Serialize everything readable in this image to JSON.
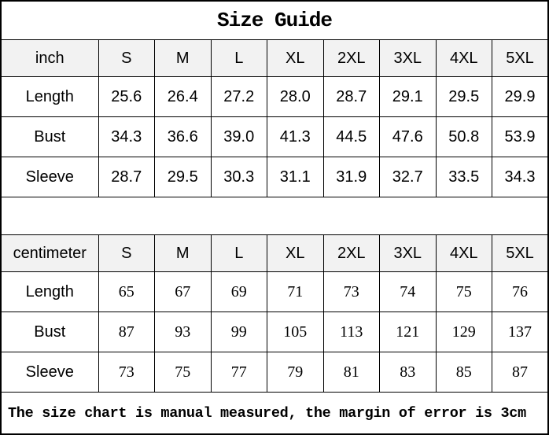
{
  "title": "Size Guide",
  "footer_note": "The size chart is manual measured, the margin of error is 3cm",
  "colors": {
    "header_bg": "#f2f2f2",
    "border": "#000000",
    "text": "#000000",
    "background": "#ffffff"
  },
  "inch_table": {
    "unit_label": "inch",
    "sizes": [
      "S",
      "M",
      "L",
      "XL",
      "2XL",
      "3XL",
      "4XL",
      "5XL"
    ],
    "rows": [
      {
        "label": "Length",
        "values": [
          "25.6",
          "26.4",
          "27.2",
          "28.0",
          "28.7",
          "29.1",
          "29.5",
          "29.9"
        ]
      },
      {
        "label": "Bust",
        "values": [
          "34.3",
          "36.6",
          "39.0",
          "41.3",
          "44.5",
          "47.6",
          "50.8",
          "53.9"
        ]
      },
      {
        "label": "Sleeve",
        "values": [
          "28.7",
          "29.5",
          "30.3",
          "31.1",
          "31.9",
          "32.7",
          "33.5",
          "34.3"
        ]
      }
    ]
  },
  "cm_table": {
    "unit_label": "centimeter",
    "sizes": [
      "S",
      "M",
      "L",
      "XL",
      "2XL",
      "3XL",
      "4XL",
      "5XL"
    ],
    "rows": [
      {
        "label": "Length",
        "values": [
          "65",
          "67",
          "69",
          "71",
          "73",
          "74",
          "75",
          "76"
        ]
      },
      {
        "label": "Bust",
        "values": [
          "87",
          "93",
          "99",
          "105",
          "113",
          "121",
          "129",
          "137"
        ]
      },
      {
        "label": "Sleeve",
        "values": [
          "73",
          "75",
          "77",
          "79",
          "81",
          "83",
          "85",
          "87"
        ]
      }
    ]
  }
}
